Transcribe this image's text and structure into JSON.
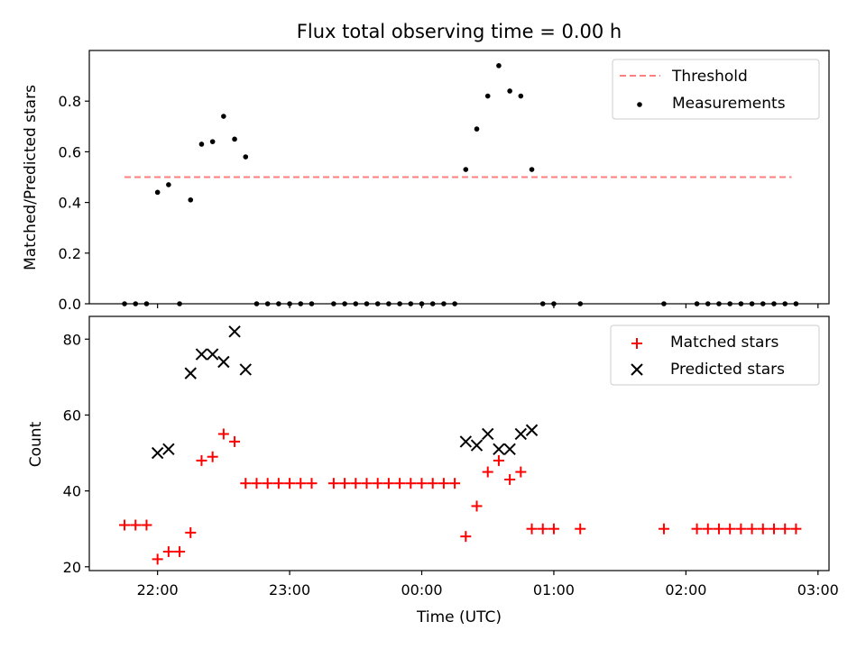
{
  "chart_data": [
    {
      "type": "scatter",
      "title": "Flux total observing time = 0.00 h",
      "ylabel": "Matched/Predicted stars",
      "xlabel": "",
      "xlim": [
        "21:29",
        "03:05"
      ],
      "ylim": [
        0,
        1.0
      ],
      "yticks": [
        0.0,
        0.2,
        0.4,
        0.6,
        0.8
      ],
      "ytick_labels": [
        "0.0",
        "0.2",
        "0.4",
        "0.6",
        "0.8"
      ],
      "grid": false,
      "legend": "top-right",
      "threshold": {
        "name": "Threshold",
        "value": 0.5,
        "x_start": "21:45",
        "x_end": "02:48",
        "color": "#ff7f7f"
      },
      "series": [
        {
          "name": "Measurements",
          "color": "#000000",
          "points": [
            [
              "21:45",
              0.0
            ],
            [
              "21:50",
              0.0
            ],
            [
              "21:55",
              0.0
            ],
            [
              "22:00",
              0.44
            ],
            [
              "22:05",
              0.47
            ],
            [
              "22:10",
              0.0
            ],
            [
              "22:15",
              0.41
            ],
            [
              "22:20",
              0.63
            ],
            [
              "22:25",
              0.64
            ],
            [
              "22:30",
              0.74
            ],
            [
              "22:35",
              0.65
            ],
            [
              "22:40",
              0.58
            ],
            [
              "22:45",
              0.0
            ],
            [
              "22:50",
              0.0
            ],
            [
              "22:55",
              0.0
            ],
            [
              "23:00",
              0.0
            ],
            [
              "23:05",
              0.0
            ],
            [
              "23:10",
              0.0
            ],
            [
              "23:20",
              0.0
            ],
            [
              "23:25",
              0.0
            ],
            [
              "23:30",
              0.0
            ],
            [
              "23:35",
              0.0
            ],
            [
              "23:40",
              0.0
            ],
            [
              "23:45",
              0.0
            ],
            [
              "23:50",
              0.0
            ],
            [
              "23:55",
              0.0
            ],
            [
              "00:00",
              0.0
            ],
            [
              "00:05",
              0.0
            ],
            [
              "00:10",
              0.0
            ],
            [
              "00:15",
              0.0
            ],
            [
              "00:20",
              0.53
            ],
            [
              "00:25",
              0.69
            ],
            [
              "00:30",
              0.82
            ],
            [
              "00:35",
              0.94
            ],
            [
              "00:40",
              0.84
            ],
            [
              "00:45",
              0.82
            ],
            [
              "00:50",
              0.53
            ],
            [
              "00:55",
              0.0
            ],
            [
              "01:00",
              0.0
            ],
            [
              "01:12",
              0.0
            ],
            [
              "01:50",
              0.0
            ],
            [
              "02:05",
              0.0
            ],
            [
              "02:10",
              0.0
            ],
            [
              "02:15",
              0.0
            ],
            [
              "02:20",
              0.0
            ],
            [
              "02:25",
              0.0
            ],
            [
              "02:30",
              0.0
            ],
            [
              "02:35",
              0.0
            ],
            [
              "02:40",
              0.0
            ],
            [
              "02:45",
              0.0
            ],
            [
              "02:50",
              0.0
            ]
          ]
        }
      ]
    },
    {
      "type": "scatter",
      "title": "",
      "ylabel": "Count",
      "xlabel": "Time (UTC)",
      "xlim": [
        "21:29",
        "03:05"
      ],
      "ylim": [
        19,
        86
      ],
      "yticks": [
        20,
        40,
        60,
        80
      ],
      "ytick_labels": [
        "20",
        "40",
        "60",
        "80"
      ],
      "xticks": [
        "22:00",
        "23:00",
        "00:00",
        "01:00",
        "02:00",
        "03:00"
      ],
      "xtick_labels": [
        "22:00",
        "23:00",
        "00:00",
        "01:00",
        "02:00",
        "03:00"
      ],
      "grid": false,
      "legend": "top-right",
      "series": [
        {
          "name": "Matched stars",
          "color": "#ff0000",
          "marker": "plus",
          "points": [
            [
              "21:45",
              31
            ],
            [
              "21:50",
              31
            ],
            [
              "21:55",
              31
            ],
            [
              "22:00",
              22
            ],
            [
              "22:05",
              24
            ],
            [
              "22:10",
              24
            ],
            [
              "22:15",
              29
            ],
            [
              "22:20",
              48
            ],
            [
              "22:25",
              49
            ],
            [
              "22:30",
              55
            ],
            [
              "22:35",
              53
            ],
            [
              "22:40",
              42
            ],
            [
              "22:45",
              42
            ],
            [
              "22:50",
              42
            ],
            [
              "22:55",
              42
            ],
            [
              "23:00",
              42
            ],
            [
              "23:05",
              42
            ],
            [
              "23:10",
              42
            ],
            [
              "23:20",
              42
            ],
            [
              "23:25",
              42
            ],
            [
              "23:30",
              42
            ],
            [
              "23:35",
              42
            ],
            [
              "23:40",
              42
            ],
            [
              "23:45",
              42
            ],
            [
              "23:50",
              42
            ],
            [
              "23:55",
              42
            ],
            [
              "00:00",
              42
            ],
            [
              "00:05",
              42
            ],
            [
              "00:10",
              42
            ],
            [
              "00:15",
              42
            ],
            [
              "00:20",
              28
            ],
            [
              "00:25",
              36
            ],
            [
              "00:30",
              45
            ],
            [
              "00:35",
              48
            ],
            [
              "00:40",
              43
            ],
            [
              "00:45",
              45
            ],
            [
              "00:50",
              30
            ],
            [
              "00:55",
              30
            ],
            [
              "01:00",
              30
            ],
            [
              "01:12",
              30
            ],
            [
              "01:50",
              30
            ],
            [
              "02:05",
              30
            ],
            [
              "02:10",
              30
            ],
            [
              "02:15",
              30
            ],
            [
              "02:20",
              30
            ],
            [
              "02:25",
              30
            ],
            [
              "02:30",
              30
            ],
            [
              "02:35",
              30
            ],
            [
              "02:40",
              30
            ],
            [
              "02:45",
              30
            ],
            [
              "02:50",
              30
            ]
          ]
        },
        {
          "name": "Predicted stars",
          "color": "#000000",
          "marker": "x",
          "points": [
            [
              "22:00",
              50
            ],
            [
              "22:05",
              51
            ],
            [
              "22:15",
              71
            ],
            [
              "22:20",
              76
            ],
            [
              "22:25",
              76
            ],
            [
              "22:30",
              74
            ],
            [
              "22:35",
              82
            ],
            [
              "22:40",
              72
            ],
            [
              "00:20",
              53
            ],
            [
              "00:25",
              52
            ],
            [
              "00:30",
              55
            ],
            [
              "00:35",
              51
            ],
            [
              "00:40",
              51
            ],
            [
              "00:45",
              55
            ],
            [
              "00:50",
              56
            ]
          ]
        }
      ]
    }
  ]
}
